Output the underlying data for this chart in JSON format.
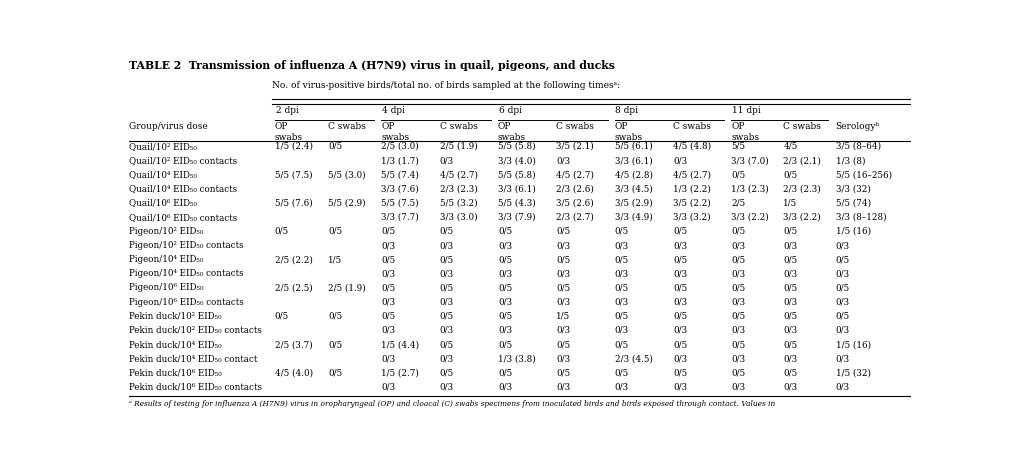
{
  "title": "TABLE 2  Transmission of inﬂuenza A (H7N9) virus in quail, pigeons, and ducks",
  "super_header": "No. of virus-positive birds/total no. of birds sampled at the following timesᵃ:",
  "col_groups": [
    "2 dpi",
    "4 dpi",
    "6 dpi",
    "8 dpi",
    "11 dpi"
  ],
  "last_col": "Serologyᵇ",
  "group_col_header": "Group/virus dose",
  "rows": [
    [
      "Quail/10² EID₅₀",
      "1/5 (2.4)",
      "0/5",
      "2/5 (3.0)",
      "2/5 (1.9)",
      "5/5 (5.8)",
      "3/5 (2.1)",
      "5/5 (6.1)",
      "4/5 (4.8)",
      "5/5",
      "4/5",
      "3/5 (8–64)"
    ],
    [
      "Quail/10² EID₅₀ contacts",
      "",
      "",
      "1/3 (1.7)",
      "0/3",
      "3/3 (4.0)",
      "0/3",
      "3/3 (6.1)",
      "0/3",
      "3/3 (7.0)",
      "2/3 (2.1)",
      "1/3 (8)"
    ],
    [
      "Quail/10⁴ EID₅₀",
      "5/5 (7.5)",
      "5/5 (3.0)",
      "5/5 (7.4)",
      "4/5 (2.7)",
      "5/5 (5.8)",
      "4/5 (2.7)",
      "4/5 (2.8)",
      "4/5 (2.7)",
      "0/5",
      "0/5",
      "5/5 (16–256)"
    ],
    [
      "Quail/10⁴ EID₅₀ contacts",
      "",
      "",
      "3/3 (7.6)",
      "2/3 (2.3)",
      "3/3 (6.1)",
      "2/3 (2.6)",
      "3/3 (4.5)",
      "1/3 (2.2)",
      "1/3 (2.3)",
      "2/3 (2.3)",
      "3/3 (32)"
    ],
    [
      "Quail/10⁶ EID₅₀",
      "5/5 (7.6)",
      "5/5 (2.9)",
      "5/5 (7.5)",
      "5/5 (3.2)",
      "5/5 (4.3)",
      "3/5 (2.6)",
      "3/5 (2.9)",
      "3/5 (2.2)",
      "2/5",
      "1/5",
      "5/5 (74)"
    ],
    [
      "Quail/10⁶ EID₅₀ contacts",
      "",
      "",
      "3/3 (7.7)",
      "3/3 (3.0)",
      "3/3 (7.9)",
      "2/3 (2.7)",
      "3/3 (4.9)",
      "3/3 (3.2)",
      "3/3 (2.2)",
      "3/3 (2.2)",
      "3/3 (8–128)"
    ],
    [
      "Pigeon/10² EID₅₀",
      "0/5",
      "0/5",
      "0/5",
      "0/5",
      "0/5",
      "0/5",
      "0/5",
      "0/5",
      "0/5",
      "0/5",
      "1/5 (16)"
    ],
    [
      "Pigeon/10² EID₅₀ contacts",
      "",
      "",
      "0/3",
      "0/3",
      "0/3",
      "0/3",
      "0/3",
      "0/3",
      "0/3",
      "0/3",
      "0/3"
    ],
    [
      "Pigeon/10⁴ EID₅₀",
      "2/5 (2.2)",
      "1/5",
      "0/5",
      "0/5",
      "0/5",
      "0/5",
      "0/5",
      "0/5",
      "0/5",
      "0/5",
      "0/5"
    ],
    [
      "Pigeon/10⁴ EID₅₀ contacts",
      "",
      "",
      "0/3",
      "0/3",
      "0/3",
      "0/3",
      "0/3",
      "0/3",
      "0/3",
      "0/3",
      "0/3"
    ],
    [
      "Pigeon/10⁶ EID₅₀",
      "2/5 (2.5)",
      "2/5 (1.9)",
      "0/5",
      "0/5",
      "0/5",
      "0/5",
      "0/5",
      "0/5",
      "0/5",
      "0/5",
      "0/5"
    ],
    [
      "Pigeon/10⁶ EID₅₀ contacts",
      "",
      "",
      "0/3",
      "0/3",
      "0/3",
      "0/3",
      "0/3",
      "0/3",
      "0/3",
      "0/3",
      "0/3"
    ],
    [
      "Pekin duck/10² EID₅₀",
      "0/5",
      "0/5",
      "0/5",
      "0/5",
      "0/5",
      "1/5",
      "0/5",
      "0/5",
      "0/5",
      "0/5",
      "0/5"
    ],
    [
      "Pekin duck/10² EID₅₀ contacts",
      "",
      "",
      "0/3",
      "0/3",
      "0/3",
      "0/3",
      "0/3",
      "0/3",
      "0/3",
      "0/3",
      "0/3"
    ],
    [
      "Pekin duck/10⁴ EID₅₀",
      "2/5 (3.7)",
      "0/5",
      "1/5 (4.4)",
      "0/5",
      "0/5",
      "0/5",
      "0/5",
      "0/5",
      "0/5",
      "0/5",
      "1/5 (16)"
    ],
    [
      "Pekin duck/10⁴ EID₅₀ contact",
      "",
      "",
      "0/3",
      "0/3",
      "1/3 (3.8)",
      "0/3",
      "2/3 (4.5)",
      "0/3",
      "0/3",
      "0/3",
      "0/3"
    ],
    [
      "Pekin duck/10⁶ EID₅₀",
      "4/5 (4.0)",
      "0/5",
      "1/5 (2.7)",
      "0/5",
      "0/5",
      "0/5",
      "0/5",
      "0/5",
      "0/5",
      "0/5",
      "1/5 (32)"
    ],
    [
      "Pekin duck/10⁶ EID₅₀ contacts",
      "",
      "",
      "0/3",
      "0/3",
      "0/3",
      "0/3",
      "0/3",
      "0/3",
      "0/3",
      "0/3",
      "0/3"
    ]
  ],
  "footnote": "ᵃ Results of testing for influenza A (H7N9) virus in oropharyngeal (OP) and cloacal (C) swabs specimens from inoculated birds and birds exposed through contact. Values in"
}
